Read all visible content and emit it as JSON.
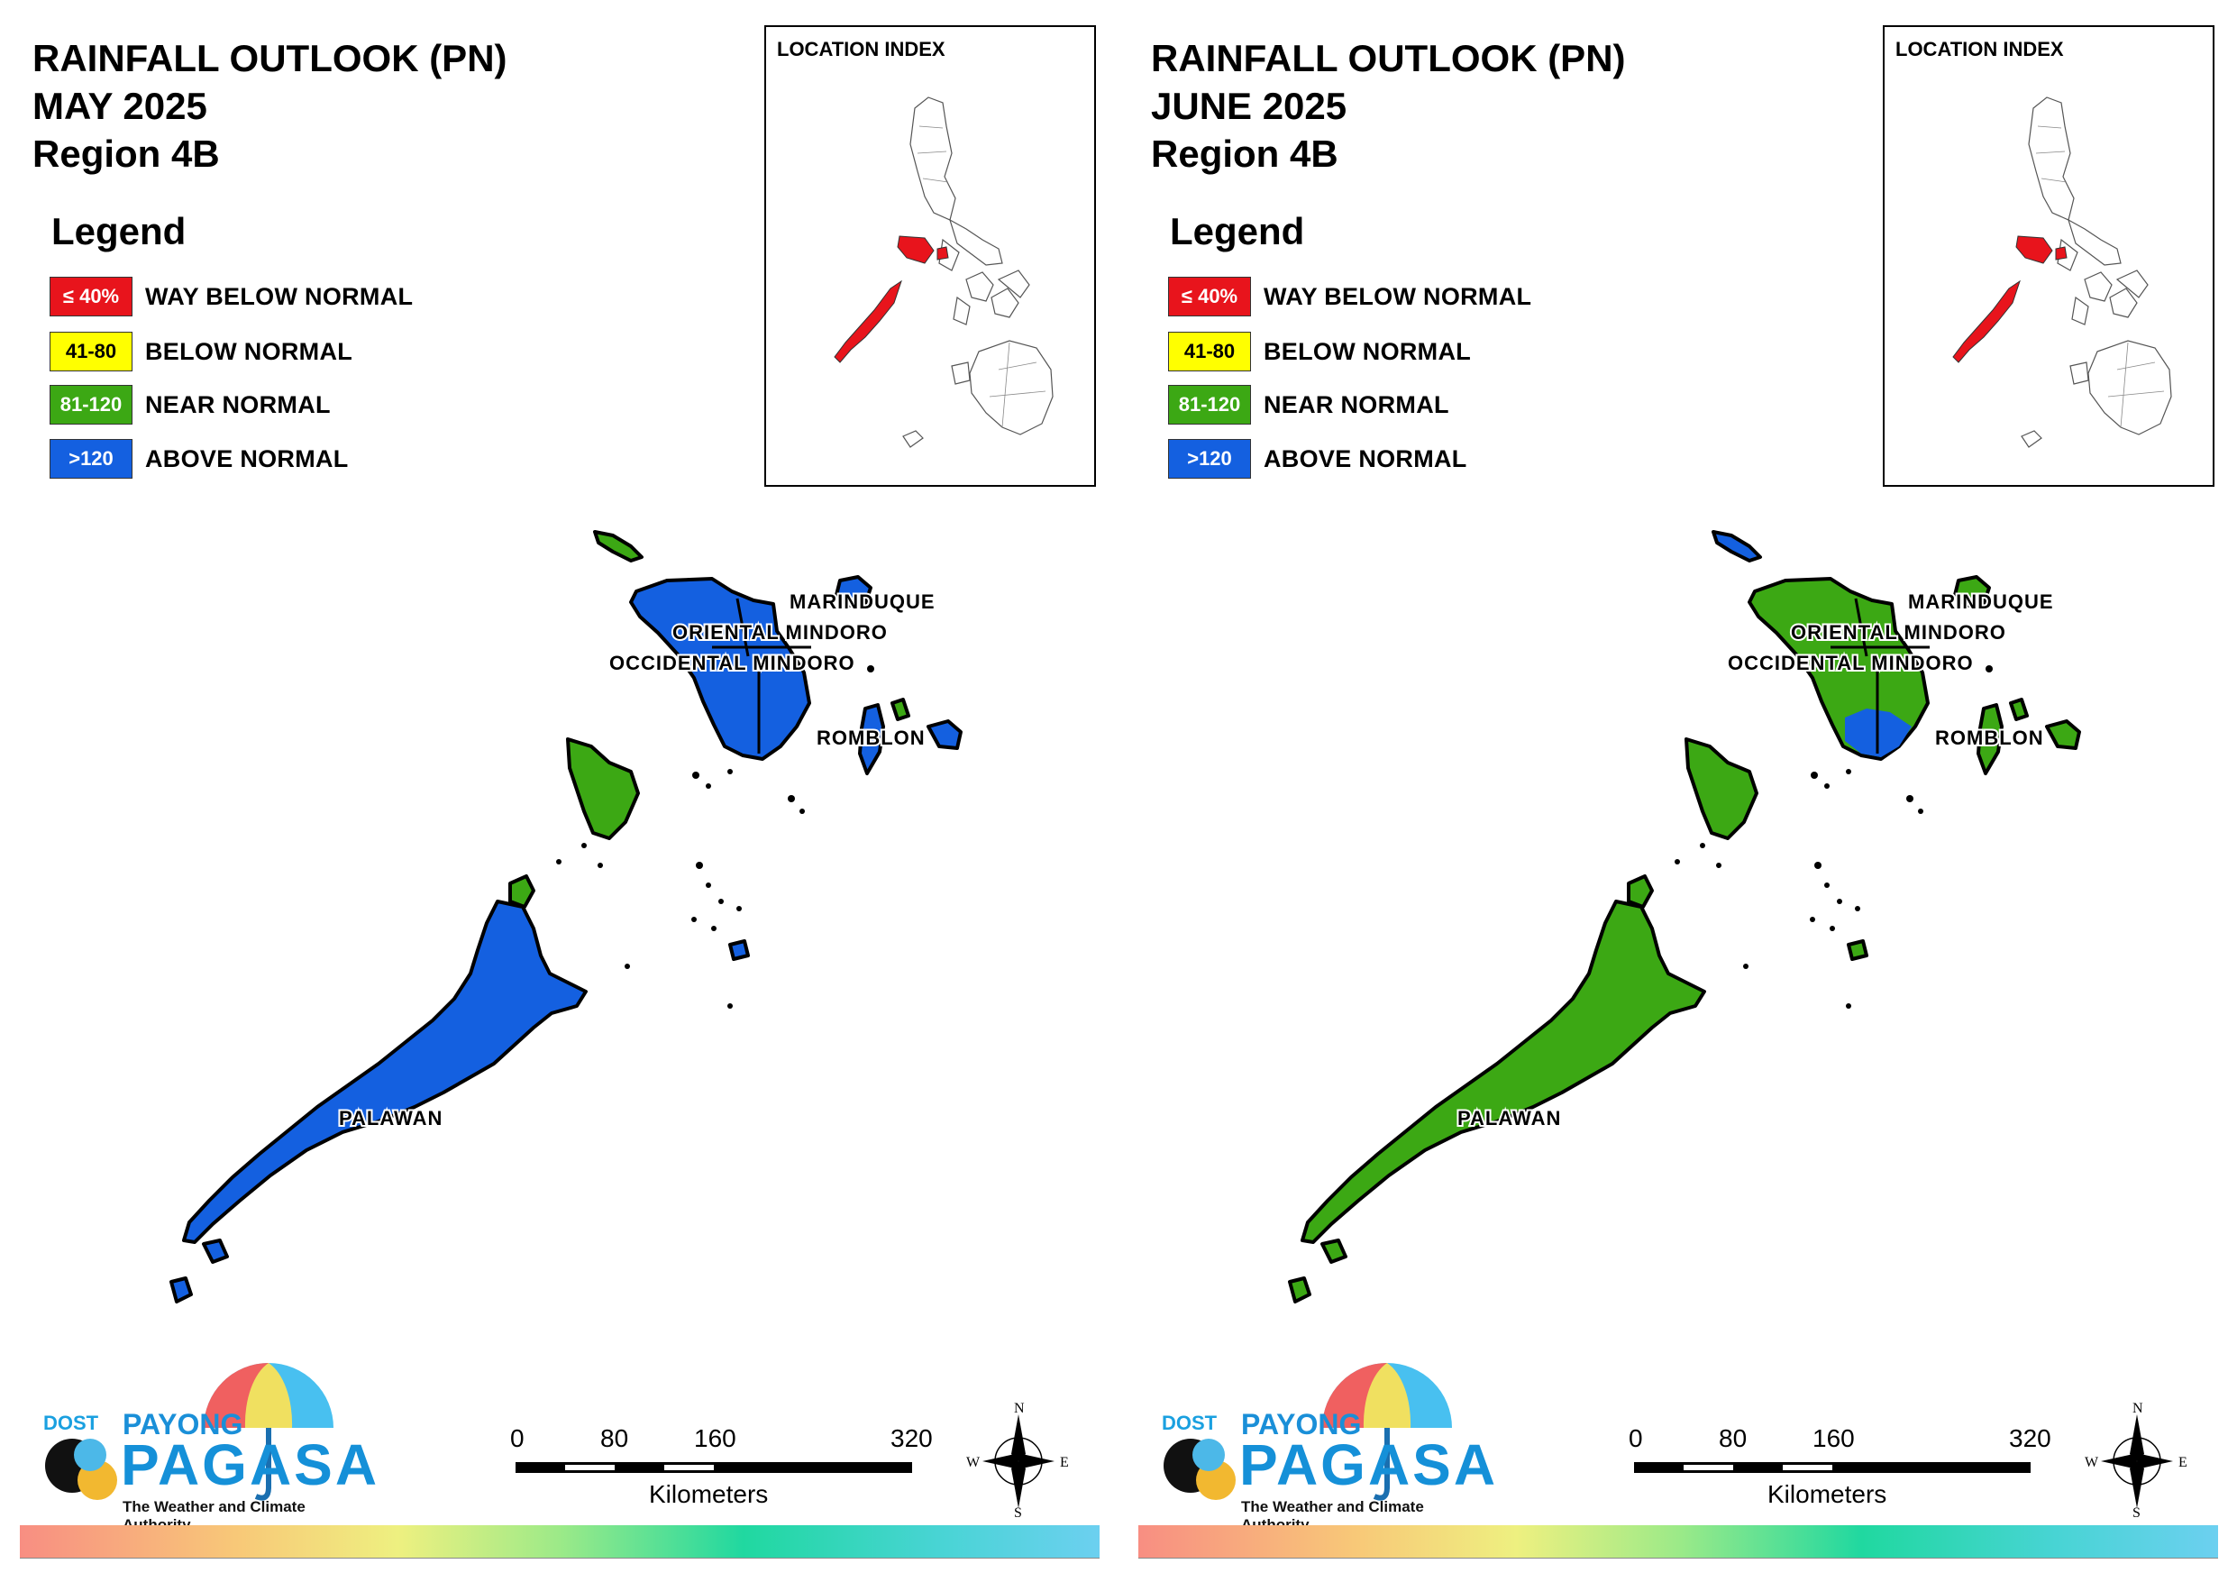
{
  "panels": [
    {
      "title": "RAINFALL OUTLOOK (PN)",
      "month": "MAY 2025",
      "region": "Region 4B",
      "legend_title": "Legend",
      "legend": [
        {
          "range": "≤ 40%",
          "label": "WAY BELOW NORMAL",
          "color": "#e8141c"
        },
        {
          "range": "41-80",
          "label": "BELOW NORMAL",
          "color": "#ffff00"
        },
        {
          "range": "81-120",
          "label": "NEAR NORMAL",
          "color": "#3ca814"
        },
        {
          "range": ">120",
          "label": "ABOVE NORMAL",
          "color": "#1460e0"
        }
      ],
      "location_index_title": "LOCATION INDEX",
      "province_labels": [
        "MARINDUQUE",
        "ORIENTAL MINDORO",
        "OCCIDENTAL MINDORO",
        "ROMBLON",
        "PALAWAN"
      ],
      "map_fill": {
        "main": "above-normal",
        "accent": "near-normal",
        "main_color": "#1460e0",
        "accent_color": "#3ca814"
      },
      "scale": {
        "ticks": [
          "0",
          "80",
          "160",
          "320"
        ],
        "unit": "Kilometers"
      },
      "compass": {
        "n": "N",
        "s": "S",
        "e": "E",
        "w": "W"
      },
      "logo": {
        "dost": "DOST",
        "payong": "PAYONG",
        "pagasa": "PAGASA",
        "tagline": "The Weather and Climate Authority"
      }
    },
    {
      "title": "RAINFALL OUTLOOK (PN)",
      "month": "JUNE 2025",
      "region": "Region 4B",
      "legend_title": "Legend",
      "legend": [
        {
          "range": "≤ 40%",
          "label": "WAY BELOW NORMAL",
          "color": "#e8141c"
        },
        {
          "range": "41-80",
          "label": "BELOW NORMAL",
          "color": "#ffff00"
        },
        {
          "range": "81-120",
          "label": "NEAR NORMAL",
          "color": "#3ca814"
        },
        {
          "range": ">120",
          "label": "ABOVE NORMAL",
          "color": "#1460e0"
        }
      ],
      "location_index_title": "LOCATION INDEX",
      "province_labels": [
        "MARINDUQUE",
        "ORIENTAL MINDORO",
        "OCCIDENTAL MINDORO",
        "ROMBLON",
        "PALAWAN"
      ],
      "map_fill": {
        "main": "near-normal",
        "accent": "above-normal",
        "main_color": "#3ca814",
        "accent_color": "#1460e0"
      },
      "scale": {
        "ticks": [
          "0",
          "80",
          "160",
          "320"
        ],
        "unit": "Kilometers"
      },
      "compass": {
        "n": "N",
        "s": "S",
        "e": "E",
        "w": "W"
      },
      "logo": {
        "dost": "DOST",
        "payong": "PAYONG",
        "pagasa": "PAGASA",
        "tagline": "The Weather and Climate Authority"
      }
    }
  ]
}
